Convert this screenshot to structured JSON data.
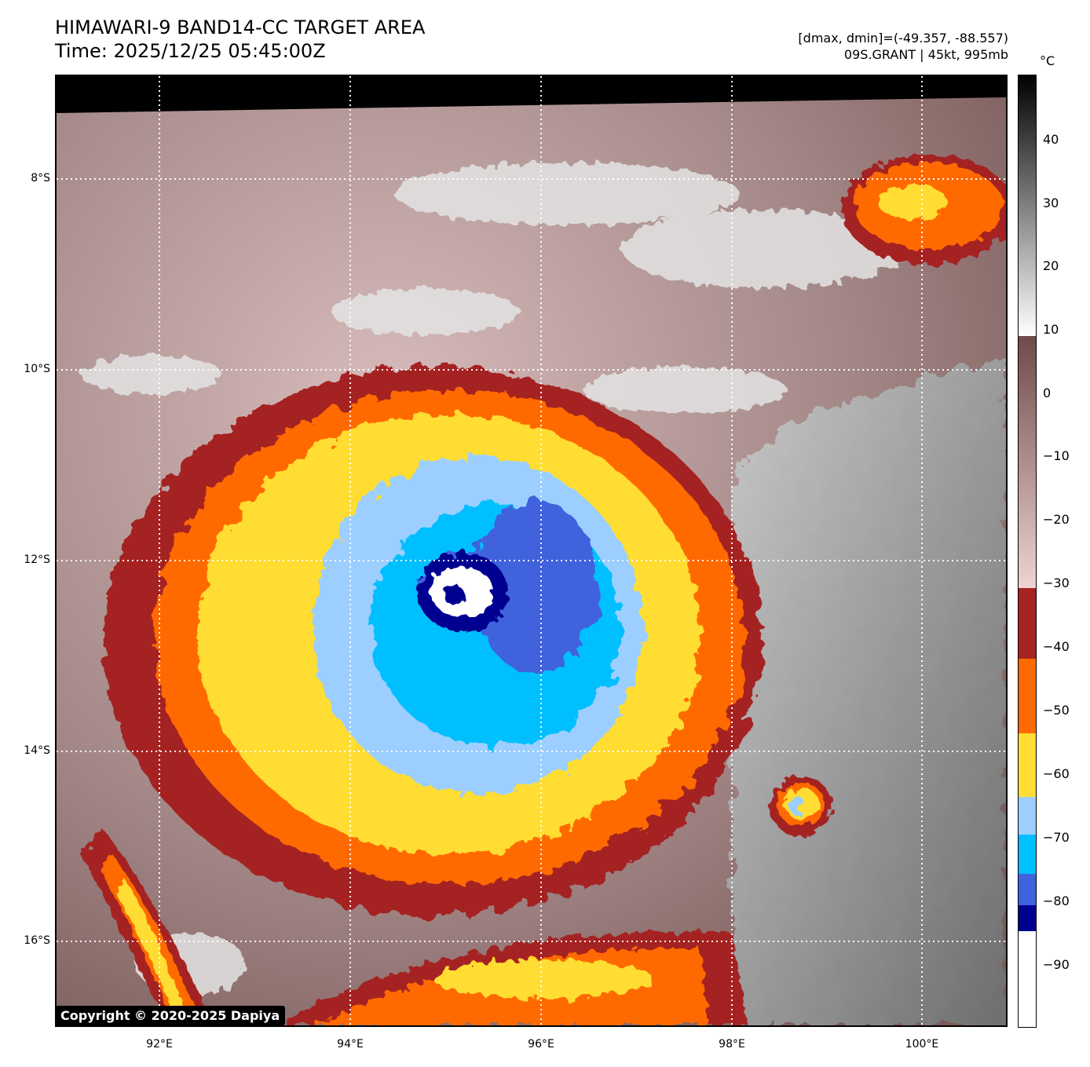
{
  "header": {
    "title_line1": "HIMAWARI-9 BAND14-CC TARGET AREA",
    "title_line2": "Time: 2025/12/25 05:45:00Z",
    "dmax_dmin": "[dmax, dmin]=(-49.357, -88.557)",
    "storm": "09S.GRANT | 45kt, 995mb"
  },
  "map": {
    "lat_labels": [
      "8°S",
      "10°S",
      "12°S",
      "14°S",
      "16°S"
    ],
    "lon_labels": [
      "92°E",
      "94°E",
      "96°E",
      "98°E",
      "100°E"
    ],
    "storm_center": {
      "lat": -12.4,
      "lon": 95.3
    },
    "copyright": "Copyright © 2020-2025 Dapiya"
  },
  "colorbar": {
    "unit": "°C",
    "tick_labels": [
      "40",
      "30",
      "20",
      "10",
      "0",
      "−10",
      "−20",
      "−30",
      "−40",
      "−50",
      "−60",
      "−70",
      "−80",
      "−90"
    ],
    "colors": {
      "warm_black": "#000000",
      "gray": "#808080",
      "white": "#ffffff",
      "brown": "#6e4a48",
      "pink": "#efd3d3",
      "dark_red": "#a52420",
      "orange": "#ff6a00",
      "yellow": "#ffdd33",
      "light_blue": "#9ccfff",
      "cyan": "#00bfff",
      "royal_blue": "#3f62dd",
      "navy": "#000090"
    }
  }
}
